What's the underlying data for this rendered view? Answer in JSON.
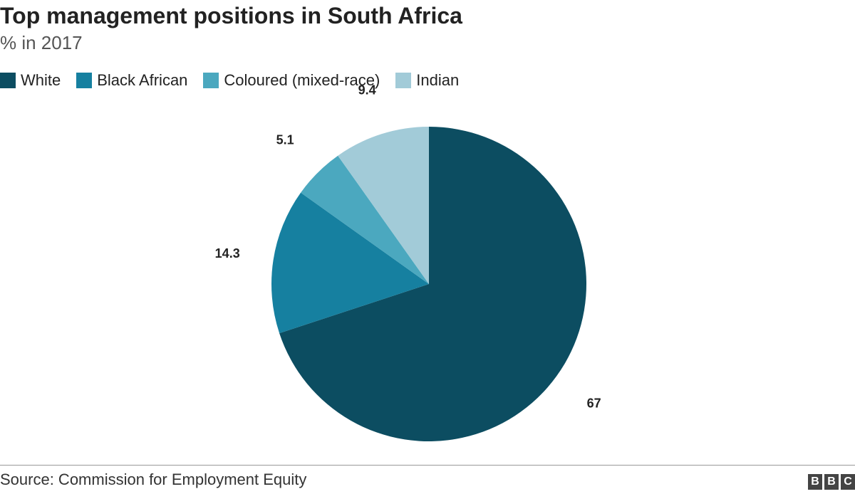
{
  "header": {
    "title": "Top management positions in South Africa",
    "subtitle": "% in 2017"
  },
  "legend": {
    "items": [
      {
        "label": "White",
        "color": "#0c4d61"
      },
      {
        "label": "Black African",
        "color": "#1680a0"
      },
      {
        "label": "Coloured (mixed-race)",
        "color": "#4ba8bf"
      },
      {
        "label": "Indian",
        "color": "#a2cbd8"
      }
    ]
  },
  "chart_data": {
    "type": "pie",
    "title": "Top management positions in South Africa",
    "subtitle": "% in 2017",
    "start": "12 o'clock",
    "direction": "clockwise",
    "legend_position": "top-left",
    "slices": [
      {
        "label": "White",
        "value": 67,
        "value_label": "67",
        "color": "#0c4d61"
      },
      {
        "label": "Black African",
        "value": 14.3,
        "value_label": "14.3",
        "color": "#1680a0"
      },
      {
        "label": "Coloured (mixed-race)",
        "value": 5.1,
        "value_label": "5.1",
        "color": "#4ba8bf"
      },
      {
        "label": "Indian",
        "value": 9.4,
        "value_label": "9.4",
        "color": "#a2cbd8"
      }
    ]
  },
  "footer": {
    "source": "Source: Commission for Employment Equity",
    "logo_letters": [
      "B",
      "B",
      "C"
    ]
  }
}
